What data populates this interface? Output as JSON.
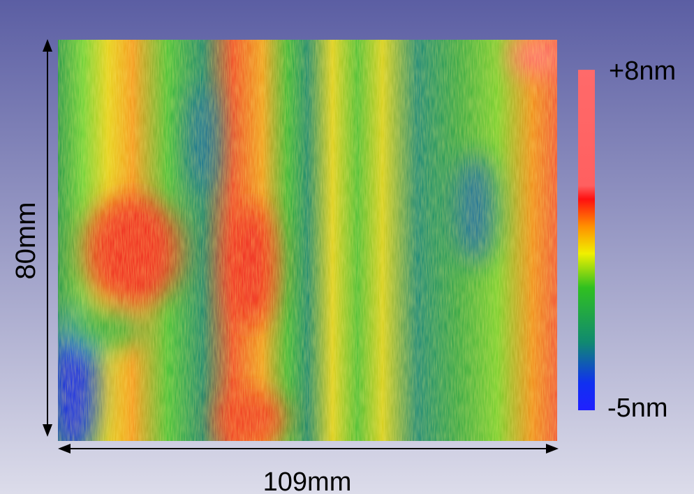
{
  "figure": {
    "height_label": "80mm",
    "width_label": "109mm",
    "colorbar": {
      "max_label": "+8nm",
      "min_label": "-5nm"
    }
  }
}
